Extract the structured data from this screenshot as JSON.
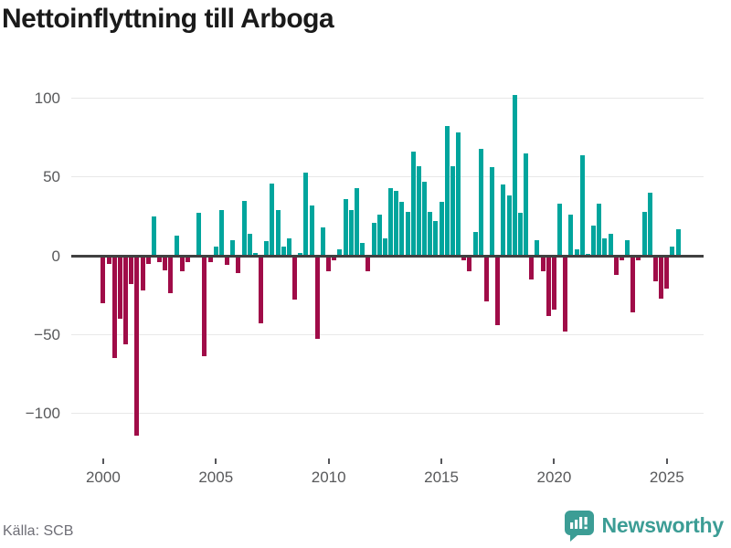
{
  "title": "Nettoinflyttning till Arboga",
  "source": "Källa: SCB",
  "brand": {
    "name": "Newsworthy",
    "color": "#3c9d95"
  },
  "chart_data": {
    "type": "bar",
    "title": "Nettoinflyttning till Arboga",
    "period": "quarterly",
    "start_year": 2000,
    "start_quarter": 1,
    "values": [
      -30,
      -5,
      -65,
      -40,
      -56,
      -18,
      -114,
      -22,
      -5,
      25,
      -4,
      -9,
      -24,
      13,
      -10,
      -4,
      -1,
      27,
      -64,
      -4,
      6,
      29,
      -6,
      10,
      -11,
      35,
      14,
      2,
      -43,
      9,
      46,
      29,
      6,
      11,
      -28,
      2,
      53,
      32,
      -53,
      18,
      -10,
      -3,
      4,
      36,
      29,
      43,
      8,
      -10,
      21,
      26,
      11,
      43,
      41,
      34,
      28,
      66,
      57,
      47,
      28,
      22,
      34,
      82,
      57,
      78,
      -3,
      -10,
      15,
      68,
      -29,
      56,
      -44,
      45,
      38,
      102,
      27,
      65,
      -15,
      10,
      -10,
      -38,
      -34,
      33,
      -48,
      26,
      4,
      64,
      1,
      19,
      33,
      11,
      14,
      -12,
      -3,
      10,
      -36,
      -3,
      28,
      40,
      -16,
      -27,
      -21,
      6,
      17
    ],
    "x_tick_labels": [
      "2000",
      "2005",
      "2010",
      "2015",
      "2020",
      "2025"
    ],
    "y_ticks": [
      100,
      50,
      0,
      -50,
      -100
    ],
    "ylim": [
      -120,
      110
    ],
    "grid": true,
    "legend": "none",
    "colors": {
      "positive": "#00a59d",
      "negative": "#a00c48"
    }
  }
}
